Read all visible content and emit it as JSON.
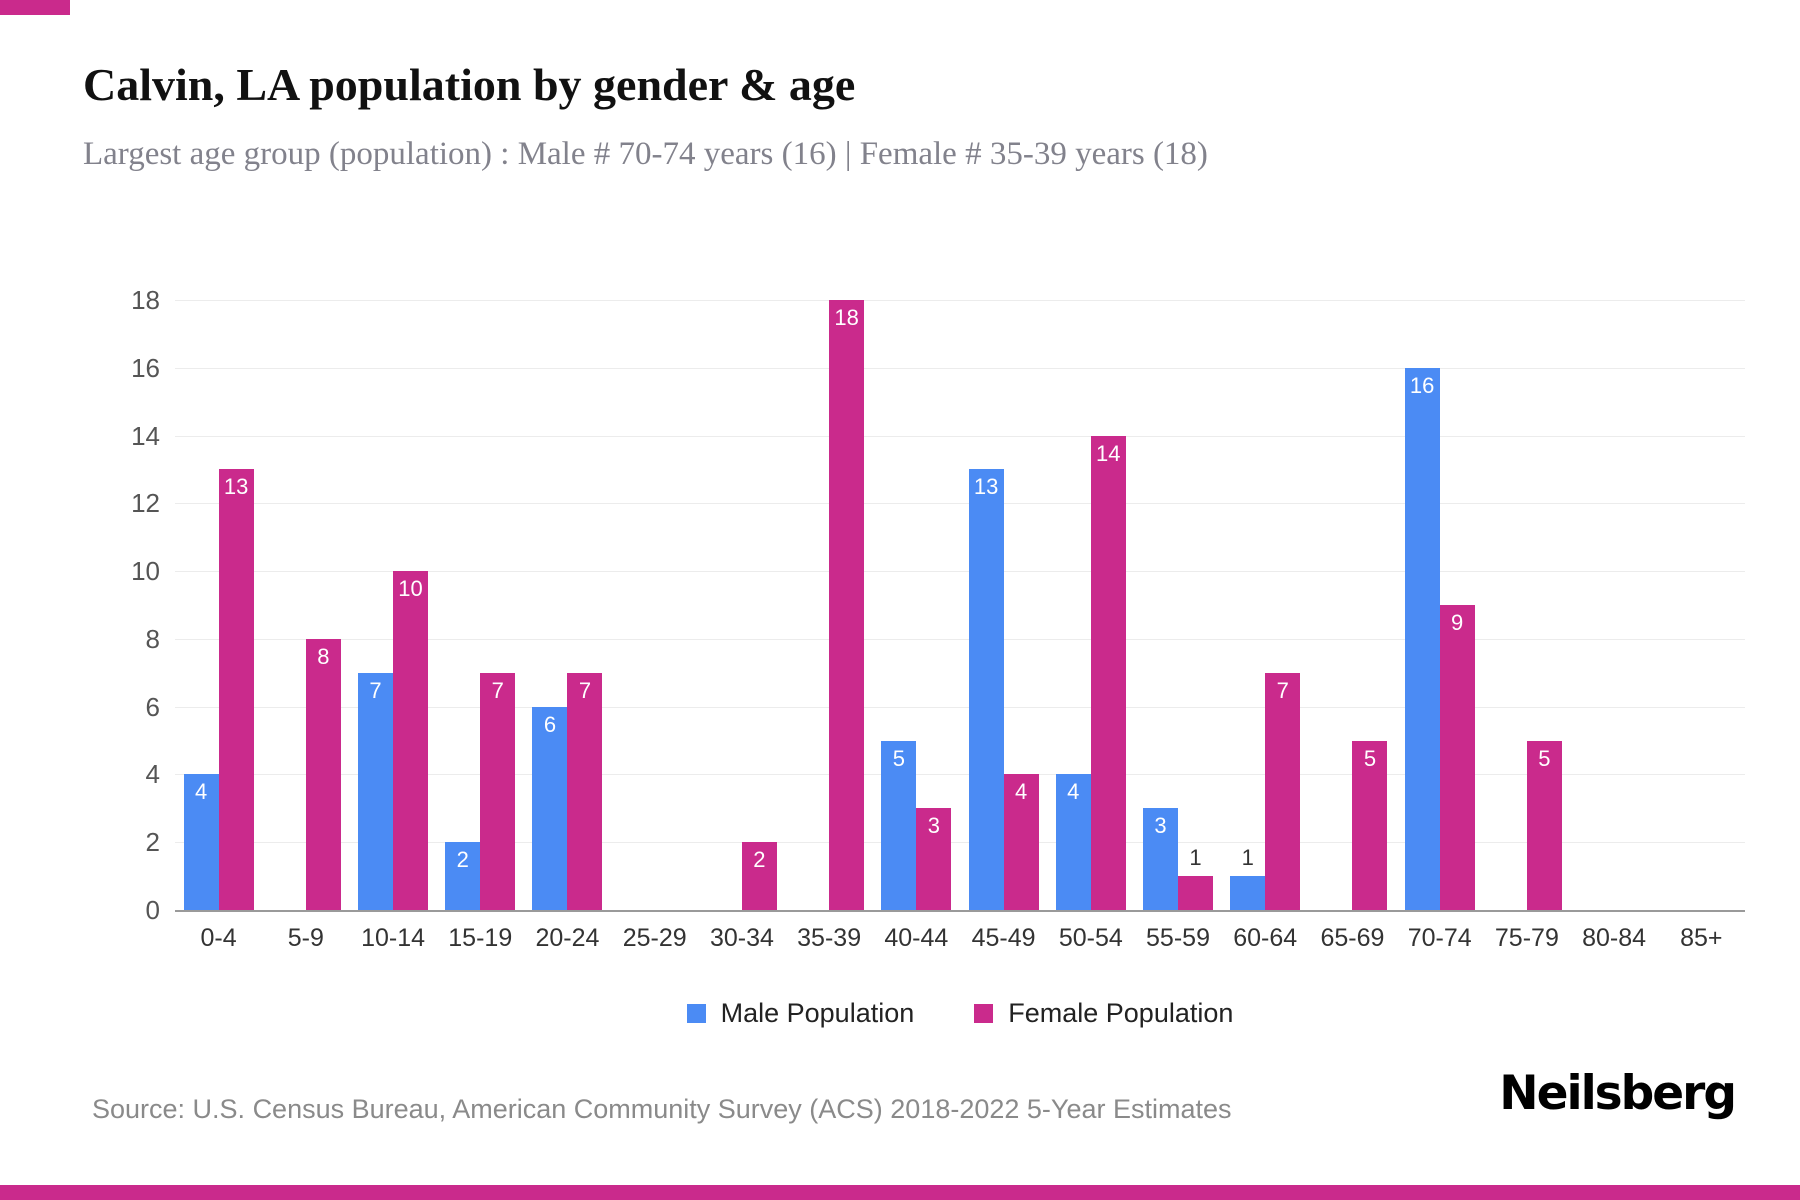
{
  "accent_color": "#ca2a8c",
  "title": "Calvin, LA population by gender & age",
  "subtitle": "Largest age group (population) : Male # 70-74 years (16) | Female # 35-39 years (18)",
  "chart_data": {
    "type": "bar",
    "title": "Calvin, LA population by gender & age",
    "categories": [
      "0-4",
      "5-9",
      "10-14",
      "15-19",
      "20-24",
      "25-29",
      "30-34",
      "35-39",
      "40-44",
      "45-49",
      "50-54",
      "55-59",
      "60-64",
      "65-69",
      "70-74",
      "75-79",
      "80-84",
      "85+"
    ],
    "series": [
      {
        "name": "Male Population",
        "color": "#4b8bf4",
        "values": [
          4,
          0,
          7,
          2,
          6,
          0,
          0,
          0,
          5,
          13,
          4,
          3,
          1,
          0,
          16,
          0,
          0,
          0
        ]
      },
      {
        "name": "Female Population",
        "color": "#ca2a8c",
        "values": [
          13,
          8,
          10,
          7,
          7,
          0,
          2,
          18,
          3,
          4,
          14,
          1,
          7,
          5,
          9,
          5,
          0,
          0
        ]
      }
    ],
    "xlabel": "",
    "ylabel": "",
    "ylim": [
      0,
      18
    ],
    "ytick_step": 2,
    "grid": true,
    "legend_position": "bottom",
    "data_labels": true
  },
  "footer": {
    "source": "Source: U.S. Census Bureau, American Community Survey (ACS) 2018-2022 5-Year Estimates",
    "brand": "Neilsberg"
  }
}
